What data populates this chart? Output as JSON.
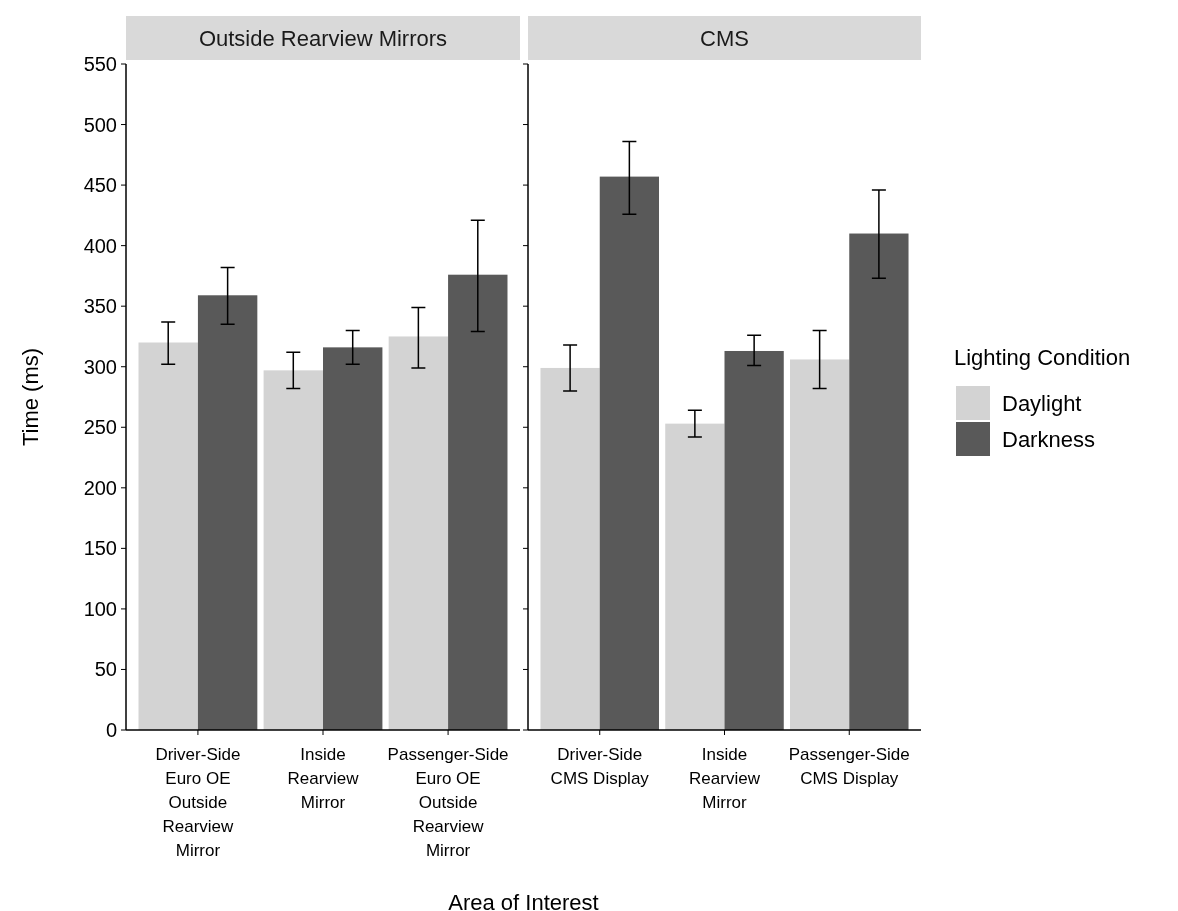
{
  "chart_data": [
    {
      "type": "bar",
      "title": "Outside Rearview Mirrors",
      "xlabel": "Area of Interest",
      "ylabel": "Time (ms)",
      "categories": [
        "Driver-Side Euro OE Outside Rearview Mirror",
        "Inside Rearview Mirror",
        "Passenger-Side Euro OE Outside Rearview Mirror"
      ],
      "ylim": [
        0,
        550
      ],
      "yticks": [
        0,
        50,
        100,
        150,
        200,
        250,
        300,
        350,
        400,
        450,
        500,
        550
      ],
      "series": [
        {
          "color": "#d3d3d3",
          "values": [
            320,
            297,
            325
          ],
          "errors": [
            [
              302,
              337
            ],
            [
              282,
              312
            ],
            [
              299,
              349
            ]
          ]
        },
        {
          "color": "#595959",
          "values": [
            359,
            316,
            376
          ],
          "errors": [
            [
              335,
              382
            ],
            [
              302,
              330
            ],
            [
              329,
              421
            ]
          ]
        }
      ]
    },
    {
      "type": "bar",
      "title": "CMS",
      "categories": [
        "Driver-Side CMS Display",
        "Inside Rearview Mirror",
        "Passenger-Side CMS Display"
      ],
      "ylim": [
        0,
        550
      ],
      "yticks": [
        0,
        50,
        100,
        150,
        200,
        250,
        300,
        350,
        400,
        450,
        500,
        550
      ],
      "tick_labels": "x",
      "legend": "right",
      "legend_title": "Lighting Condition",
      "series": [
        {
          "name": "Daylight",
          "color": "#d3d3d3",
          "values": [
            299,
            253,
            306
          ],
          "errors": [
            [
              280,
              318
            ],
            [
              242,
              264
            ],
            [
              282,
              330
            ]
          ]
        },
        {
          "name": "Darkness",
          "color": "#595959",
          "values": [
            457,
            313,
            410
          ],
          "errors": [
            [
              426,
              486
            ],
            [
              301,
              326
            ],
            [
              373,
              446
            ]
          ]
        }
      ]
    }
  ]
}
